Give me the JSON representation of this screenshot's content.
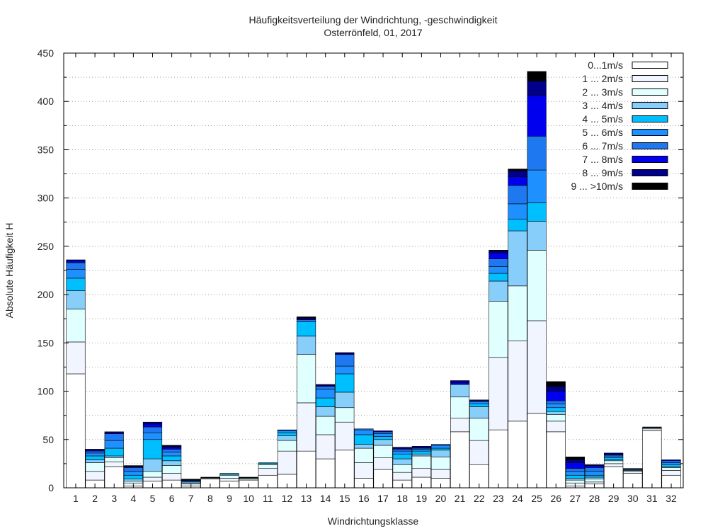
{
  "chart_data": {
    "type": "bar",
    "stacked": true,
    "title": "Häufigkeitsverteilung der Windrichtung, -geschwindigkeit",
    "subtitle": "Osterrönfeld, 01, 2017",
    "xlabel": "Windrichtungsklasse",
    "ylabel": "Absolute Häufigkeit H",
    "ylim": [
      0,
      450
    ],
    "yticks": [
      0,
      50,
      100,
      150,
      200,
      250,
      300,
      350,
      400,
      450
    ],
    "grid": true,
    "legend_position": "top-right",
    "categories": [
      "1",
      "2",
      "3",
      "4",
      "5",
      "6",
      "7",
      "8",
      "9",
      "10",
      "11",
      "12",
      "13",
      "14",
      "15",
      "16",
      "17",
      "18",
      "19",
      "20",
      "21",
      "22",
      "23",
      "24",
      "25",
      "26",
      "27",
      "28",
      "29",
      "30",
      "31",
      "32"
    ],
    "series": [
      {
        "name": "0...1m/s",
        "color": "#ffffff",
        "values": [
          118,
          8,
          22,
          2,
          7,
          8,
          2,
          9,
          7,
          8,
          13,
          14,
          38,
          30,
          39,
          10,
          19,
          8,
          11,
          10,
          58,
          24,
          60,
          69,
          77,
          58,
          2,
          4,
          22,
          15,
          59,
          13
        ]
      },
      {
        "name": "1 ... 2m/s",
        "color": "#f0f5ff",
        "values": [
          33,
          9,
          5,
          3,
          4,
          7,
          2,
          1,
          3,
          1,
          7,
          24,
          50,
          25,
          29,
          16,
          12,
          8,
          9,
          9,
          14,
          25,
          75,
          83,
          96,
          11,
          3,
          2,
          3,
          2,
          2,
          5
        ]
      },
      {
        "name": "2 ... 3m/s",
        "color": "#e0ffff",
        "values": [
          34,
          9,
          4,
          2,
          6,
          8,
          1,
          0,
          3,
          1,
          4,
          11,
          50,
          19,
          15,
          15,
          13,
          8,
          13,
          13,
          22,
          23,
          58,
          57,
          73,
          7,
          3,
          3,
          3,
          1,
          1,
          3
        ]
      },
      {
        "name": "3 ... 4m/s",
        "color": "#87cefa",
        "values": [
          19,
          3,
          2,
          2,
          13,
          5,
          1,
          0,
          1,
          0,
          1,
          5,
          19,
          10,
          16,
          4,
          6,
          6,
          2,
          7,
          13,
          12,
          21,
          57,
          30,
          3,
          2,
          2,
          1,
          0,
          0,
          1
        ]
      },
      {
        "name": "4 ... 5m/s",
        "color": "#00bfff",
        "values": [
          13,
          4,
          8,
          4,
          20,
          5,
          1,
          0,
          1,
          0,
          1,
          3,
          15,
          9,
          19,
          10,
          3,
          5,
          3,
          2,
          0,
          3,
          8,
          12,
          19,
          4,
          3,
          2,
          2,
          0,
          0,
          2
        ]
      },
      {
        "name": "5 ... 6m/s",
        "color": "#1e90ff",
        "values": [
          9,
          3,
          8,
          4,
          7,
          4,
          0,
          0,
          0,
          0,
          0,
          2,
          0,
          9,
          8,
          5,
          3,
          3,
          2,
          3,
          0,
          2,
          7,
          16,
          34,
          4,
          4,
          4,
          2,
          1,
          0,
          2
        ]
      },
      {
        "name": "6 ... 7m/s",
        "color": "#1e78f0",
        "values": [
          7,
          2,
          7,
          4,
          6,
          3,
          0,
          0,
          0,
          0,
          0,
          1,
          2,
          3,
          12,
          1,
          2,
          2,
          1,
          1,
          0,
          1,
          8,
          19,
          35,
          3,
          3,
          4,
          1,
          0,
          0,
          2
        ]
      },
      {
        "name": "7 ... 8m/s",
        "color": "#0000ee",
        "values": [
          2,
          1,
          1,
          1,
          3,
          2,
          0,
          0,
          0,
          0,
          0,
          0,
          1,
          1,
          1,
          0,
          1,
          1,
          1,
          0,
          2,
          0,
          6,
          9,
          42,
          10,
          6,
          2,
          1,
          0,
          0,
          1
        ]
      },
      {
        "name": "8 ... 9m/s",
        "color": "#00008b",
        "values": [
          1,
          1,
          1,
          0,
          2,
          1,
          1,
          0,
          0,
          0,
          0,
          0,
          1,
          1,
          1,
          0,
          0,
          1,
          1,
          0,
          2,
          1,
          2,
          6,
          15,
          5,
          3,
          1,
          1,
          0,
          0,
          0
        ]
      },
      {
        "name": "9 ... >10m/s",
        "color": "#000000",
        "values": [
          0,
          0,
          0,
          1,
          0,
          1,
          1,
          1,
          0,
          1,
          0,
          0,
          1,
          0,
          0,
          0,
          0,
          0,
          0,
          0,
          0,
          0,
          1,
          2,
          10,
          5,
          3,
          0,
          0,
          1,
          1,
          0
        ]
      }
    ]
  }
}
